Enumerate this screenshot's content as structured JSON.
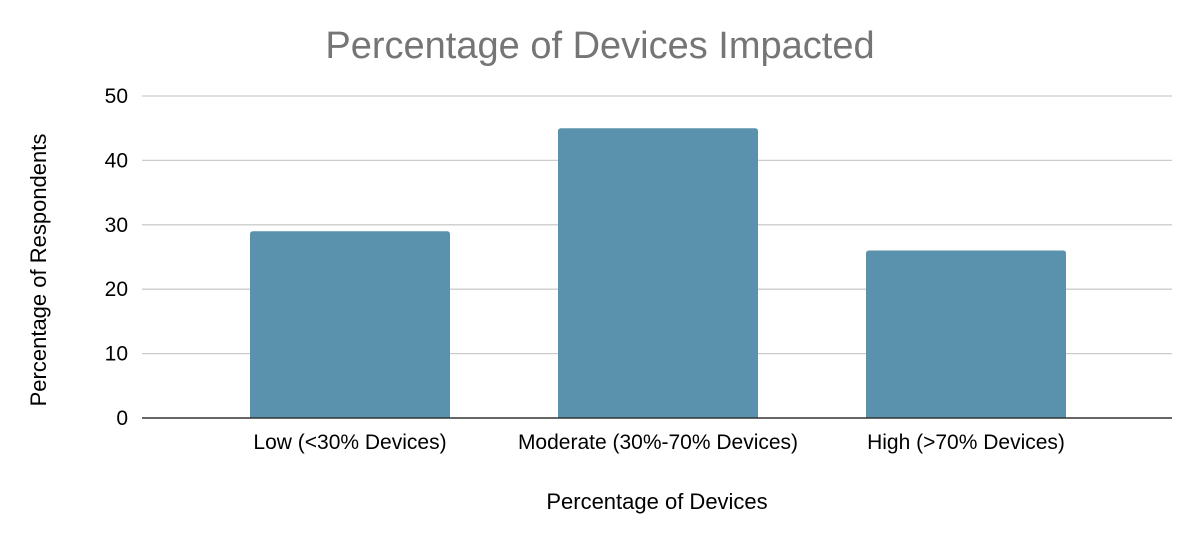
{
  "chart_data": {
    "type": "bar",
    "title": "Percentage of Devices Impacted",
    "xlabel": "Percentage of Devices",
    "ylabel": "Percentage of Respondents",
    "categories": [
      "Low (<30% Devices)",
      "Moderate (30%-70% Devices)",
      "High (>70% Devices)"
    ],
    "values": [
      29,
      45,
      26
    ],
    "ylim": [
      0,
      50
    ],
    "yticks": [
      0,
      10,
      20,
      30,
      40,
      50
    ],
    "grid": true,
    "legend": "none",
    "colors": {
      "bar": "#5a92ae",
      "title": "#757575",
      "grid": "#cccccc",
      "baseline": "#333333"
    }
  }
}
